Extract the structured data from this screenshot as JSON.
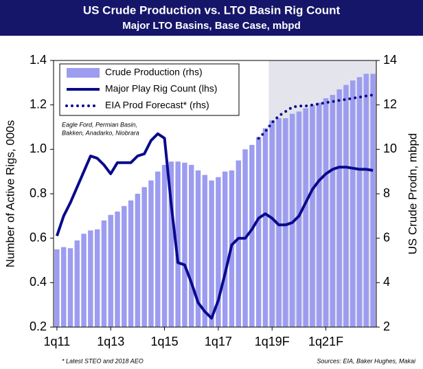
{
  "chart_data": {
    "type": "combo",
    "title": "US Crude Production vs. LTO Basin Rig Count",
    "subtitle": "Major LTO Basins, Base Case, mbpd",
    "y_label": "Number of Active Rigs, 000s",
    "y2_label": "US Crude Prodn, mbpd",
    "annotations": [
      "Eagle Ford, Permian Basin,",
      "Bakken, Anadarko, Niobrara"
    ],
    "footnote": "* Latest STEO and 2018 AEO",
    "source": "Sources: EIA, Baker Hughes, Makai",
    "categories": [
      "1q11",
      null,
      null,
      null,
      null,
      null,
      null,
      null,
      "1q13",
      null,
      null,
      null,
      null,
      null,
      null,
      null,
      "1q15",
      null,
      null,
      null,
      null,
      null,
      null,
      null,
      "1q17",
      null,
      null,
      null,
      null,
      null,
      null,
      null,
      "1q19F",
      null,
      null,
      null,
      null,
      null,
      null,
      null,
      "1q21F",
      null,
      null,
      null,
      null,
      null,
      null,
      null
    ],
    "ylim": [
      0.2,
      1.4
    ],
    "yticks": [
      0.2,
      0.4,
      0.6,
      0.8,
      {
        "value": 1,
        "label": "1.0"
      },
      1.2,
      1.4
    ],
    "y2lim": [
      2,
      14
    ],
    "y2ticks": [
      2,
      4,
      6,
      8,
      10,
      12,
      14
    ],
    "legend": "upper left",
    "forecast_shade": "#e4e4ec",
    "series": [
      {
        "name": "Crude Production (rhs)",
        "type": "bar",
        "axis": "y2",
        "color": "#9c9cf0",
        "values": [
          5.5,
          5.6,
          5.55,
          5.9,
          6.2,
          6.35,
          6.4,
          6.8,
          7.05,
          7.2,
          7.45,
          7.7,
          8.0,
          8.3,
          8.6,
          9.0,
          9.3,
          9.45,
          9.45,
          9.4,
          9.3,
          9.05,
          8.85,
          8.6,
          8.75,
          9.0,
          9.05,
          9.5,
          10.0,
          10.2,
          10.55,
          10.95,
          11.3,
          11.4,
          11.4,
          11.6,
          11.7,
          11.85,
          12.0,
          12.1,
          12.3,
          12.45,
          12.7,
          12.9,
          13.1,
          13.25,
          13.4,
          13.4
        ]
      },
      {
        "name": "Major Play Rig Count (lhs)",
        "type": "line",
        "color": "#0a0a8c",
        "values": [
          0.61,
          0.7,
          0.76,
          0.83,
          0.9,
          0.97,
          0.96,
          0.93,
          0.89,
          0.94,
          0.94,
          0.94,
          0.97,
          0.98,
          1.04,
          1.07,
          1.05,
          0.75,
          0.49,
          0.48,
          0.4,
          0.31,
          0.27,
          0.24,
          0.32,
          0.44,
          0.57,
          0.6,
          0.6,
          0.64,
          0.69,
          0.71,
          0.69,
          0.66,
          0.66,
          0.67,
          0.7,
          0.76,
          0.82,
          0.86,
          0.89,
          0.91,
          0.92,
          0.92,
          0.915,
          0.91,
          0.91,
          0.905
        ]
      },
      {
        "name": "EIA Prod Forecast* (rhs)",
        "type": "line",
        "axis": "y2",
        "dash": "dotted",
        "color": "#0a0a8c",
        "values": [
          null,
          null,
          null,
          null,
          null,
          null,
          null,
          null,
          null,
          null,
          null,
          null,
          null,
          null,
          null,
          null,
          null,
          null,
          null,
          null,
          null,
          null,
          null,
          null,
          null,
          null,
          null,
          null,
          null,
          null,
          10.5,
          10.8,
          11.2,
          11.5,
          11.7,
          11.9,
          11.95,
          11.95,
          12.0,
          12.05,
          12.1,
          12.15,
          12.2,
          12.25,
          12.3,
          12.35,
          12.4,
          12.45
        ]
      }
    ]
  }
}
